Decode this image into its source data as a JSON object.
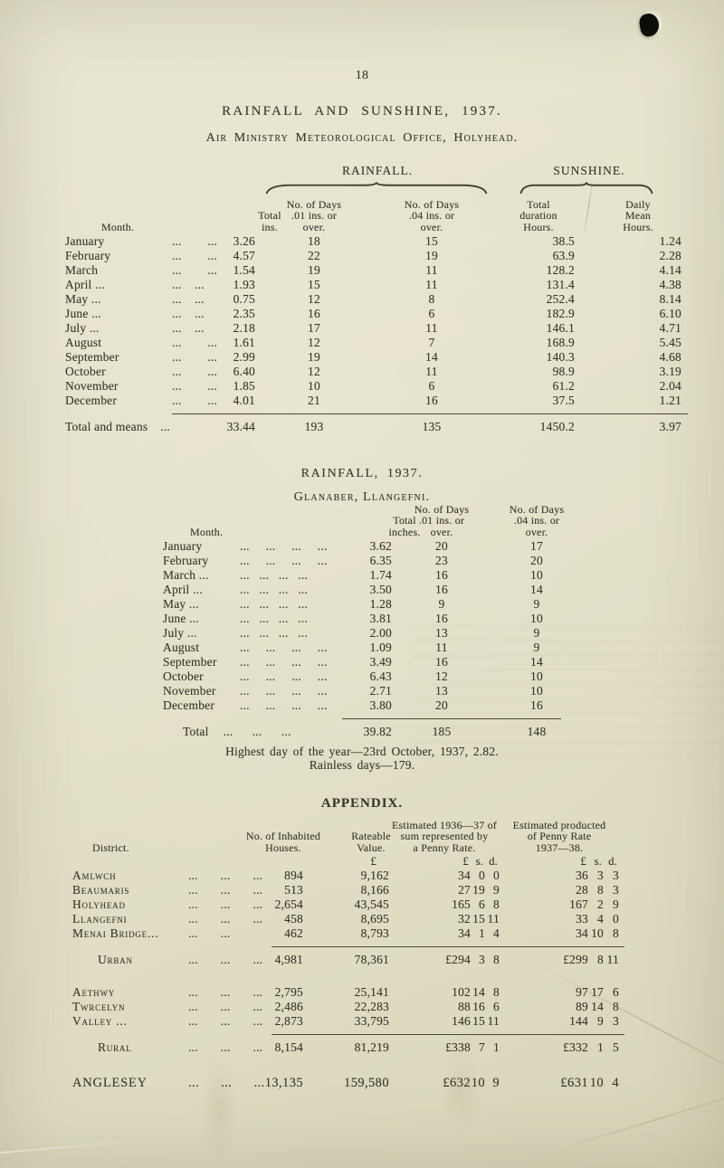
{
  "page": {
    "number": "18",
    "title": "RAINFALL AND SUNSHINE, 1937.",
    "subtitle": "Air Ministry Meteorological Office, Holyhead."
  },
  "colors": {
    "paper": "#e5e2ca",
    "ink": "#3a382d",
    "rule": "#4c4838",
    "hole_punch": "#0d0d0a"
  },
  "table1": {
    "group_rainfall": "RAINFALL.",
    "group_sunshine": "SUNSHINE.",
    "headers": {
      "month": "Month.",
      "total": "Total\nins.",
      "d01": "No. of Days\n.01 ins. or\nover.",
      "d04": "No. of Days\n.04 ins. or\nover.",
      "dur": "Total\nduration\nHours.",
      "mean": "Daily\nMean\nHours."
    },
    "rows": [
      {
        "month": "January",
        "dots": "...        ...",
        "total": "3.26",
        "d01": "18",
        "d04": "15",
        "dur": "38.5",
        "mean": "1.24"
      },
      {
        "month": "February",
        "dots": "...        ...",
        "total": "4.57",
        "d01": "22",
        "d04": "19",
        "dur": "63.9",
        "mean": "2.28"
      },
      {
        "month": "March",
        "dots": "...        ...",
        "total": "1.54",
        "d01": "19",
        "d04": "11",
        "dur": "128.2",
        "mean": "4.14"
      },
      {
        "month": "April ...",
        "dots": "...    ...",
        "total": "1.93",
        "d01": "15",
        "d04": "11",
        "dur": "131.4",
        "mean": "4.38"
      },
      {
        "month": "May ...",
        "dots": "...    ...",
        "total": "0.75",
        "d01": "12",
        "d04": "8",
        "dur": "252.4",
        "mean": "8.14"
      },
      {
        "month": "June ...",
        "dots": "...    ...",
        "total": "2.35",
        "d01": "16",
        "d04": "6",
        "dur": "182.9",
        "mean": "6.10"
      },
      {
        "month": "July ...",
        "dots": "...    ...",
        "total": "2.18",
        "d01": "17",
        "d04": "11",
        "dur": "146.1",
        "mean": "4.71"
      },
      {
        "month": "August",
        "dots": "...        ...",
        "total": "1.61",
        "d01": "12",
        "d04": "7",
        "dur": "168.9",
        "mean": "5.45"
      },
      {
        "month": "September",
        "dots": "...        ...",
        "total": "2.99",
        "d01": "19",
        "d04": "14",
        "dur": "140.3",
        "mean": "4.68"
      },
      {
        "month": "October",
        "dots": "...        ...",
        "total": "6.40",
        "d01": "12",
        "d04": "11",
        "dur": "98.9",
        "mean": "3.19"
      },
      {
        "month": "November",
        "dots": "...        ...",
        "total": "1.85",
        "d01": "10",
        "d04": "6",
        "dur": "61.2",
        "mean": "2.04"
      },
      {
        "month": "December",
        "dots": "...        ...",
        "total": "4.01",
        "d01": "21",
        "d04": "16",
        "dur": "37.5",
        "mean": "1.21"
      }
    ],
    "total_label": "Total and means",
    "total_dots": "...",
    "totals": {
      "total": "33.44",
      "d01": "193",
      "d04": "135",
      "dur": "1450.2",
      "mean": "3.97"
    }
  },
  "table2": {
    "title": "RAINFALL, 1937.",
    "subtitle": "Glanaber, Llangefni.",
    "headers": {
      "month": "Month.",
      "total": "Total\ninches.",
      "d01": "No. of Days\n.01 ins. or\nover.",
      "d04": "No. of Days\n.04 ins. or\nover."
    },
    "rows": [
      {
        "month": "January",
        "dots": "...     ...     ...     ...",
        "total": "3.62",
        "d01": "20",
        "d04": "17"
      },
      {
        "month": "February",
        "dots": "...     ...     ...     ...",
        "total": "6.35",
        "d01": "23",
        "d04": "20"
      },
      {
        "month": "March ...",
        "dots": "...   ...   ...   ...",
        "total": "1.74",
        "d01": "16",
        "d04": "10"
      },
      {
        "month": "April ...",
        "dots": "...   ...   ...   ...",
        "total": "3.50",
        "d01": "16",
        "d04": "14"
      },
      {
        "month": "May ...",
        "dots": "...   ...   ...   ...",
        "total": "1.28",
        "d01": "9",
        "d04": "9"
      },
      {
        "month": "June ...",
        "dots": "...   ...   ...   ...",
        "total": "3.81",
        "d01": "16",
        "d04": "10"
      },
      {
        "month": "July ...",
        "dots": "...   ...   ...   ...",
        "total": "2.00",
        "d01": "13",
        "d04": "9"
      },
      {
        "month": "August",
        "dots": "...     ...     ...     ...",
        "total": "1.09",
        "d01": "11",
        "d04": "9"
      },
      {
        "month": "September",
        "dots": "...     ...     ...     ...",
        "total": "3.49",
        "d01": "16",
        "d04": "14"
      },
      {
        "month": "October",
        "dots": "...     ...     ...     ...",
        "total": "6.43",
        "d01": "12",
        "d04": "10"
      },
      {
        "month": "November",
        "dots": "...     ...     ...     ...",
        "total": "2.71",
        "d01": "13",
        "d04": "10"
      },
      {
        "month": "December",
        "dots": "...     ...     ...     ...",
        "total": "3.80",
        "d01": "20",
        "d04": "16"
      }
    ],
    "total_label": "Total",
    "total_dots": "...      ...      ...",
    "totals": {
      "total": "39.82",
      "d01": "185",
      "d04": "148"
    },
    "highest_day": "Highest day of the year—23rd October, 1937, 2.82.",
    "rainless_days": "Rainless days—179."
  },
  "appendix": {
    "title": "APPENDIX.",
    "headers": {
      "district": "District.",
      "houses": "No. of Inhabited\nHouses.",
      "rateable": "Rateable\nValue.",
      "rateable_unit": "£",
      "est1": "Estimated 1936—37 of\nsum represented by\na Penny Rate.",
      "est2": "Estimated producted\nof Penny Rate\n1937—38.",
      "pound": "£",
      "shillings": "s.",
      "pence": "d."
    },
    "districts": [
      {
        "name": "Amlwch",
        "dots": "...       ...       ...",
        "houses": "894",
        "rateable": "9,162",
        "p1": "34",
        "s1": "0",
        "d1": "0",
        "p2": "36",
        "s2": "3",
        "d2": "3"
      },
      {
        "name": "Beaumaris",
        "dots": "...       ...       ...",
        "houses": "513",
        "rateable": "8,166",
        "p1": "27",
        "s1": "19",
        "d1": "9",
        "p2": "28",
        "s2": "8",
        "d2": "3"
      },
      {
        "name": "Holyhead",
        "dots": "...       ...       ...",
        "houses": "2,654",
        "rateable": "43,545",
        "p1": "165",
        "s1": "6",
        "d1": "8",
        "p2": "167",
        "s2": "2",
        "d2": "9"
      },
      {
        "name": "Llangefni",
        "dots": "...       ...       ...",
        "houses": "458",
        "rateable": "8,695",
        "p1": "32",
        "s1": "15",
        "d1": "11",
        "p2": "33",
        "s2": "4",
        "d2": "0"
      },
      {
        "name": "Menai Bridge...",
        "dots": "...       ...",
        "houses": "462",
        "rateable": "8,793",
        "p1": "34",
        "s1": "1",
        "d1": "4",
        "p2": "34",
        "s2": "10",
        "d2": "8"
      }
    ],
    "urban_rows": [
      {
        "name": "Urban",
        "dots": "...       ...       ...",
        "houses": "4,981",
        "rateable": "78,361",
        "p1": "£294",
        "s1": "3",
        "d1": "8",
        "p2": "£299",
        "s2": "8",
        "d2": "11"
      }
    ],
    "rural_districts": [
      {
        "name": "Aethwy",
        "dots": "...       ...       ...",
        "houses": "2,795",
        "rateable": "25,141",
        "p1": "102",
        "s1": "14",
        "d1": "8",
        "p2": "97",
        "s2": "17",
        "d2": "6"
      },
      {
        "name": "Twrcelyn",
        "dots": "...       ...       ...",
        "houses": "2,486",
        "rateable": "22,283",
        "p1": "88",
        "s1": "16",
        "d1": "6",
        "p2": "89",
        "s2": "14",
        "d2": "8"
      },
      {
        "name": "Valley ...",
        "dots": "...       ...       ...",
        "houses": "2,873",
        "rateable": "33,795",
        "p1": "146",
        "s1": "15",
        "d1": "11",
        "p2": "144",
        "s2": "9",
        "d2": "3"
      }
    ],
    "rural_rows": [
      {
        "name": "Rural",
        "dots": "...       ...       ...",
        "houses": "8,154",
        "rateable": "81,219",
        "p1": "£338",
        "s1": "7",
        "d1": "1",
        "p2": "£332",
        "s2": "1",
        "d2": "5"
      }
    ],
    "county_rows": [
      {
        "name": "ANGLESEY",
        "dots": "...      ...      ...",
        "houses": "13,135",
        "rateable": "159,580",
        "p1": "£632",
        "s1": "10",
        "d1": "9",
        "p2": "£631",
        "s2": "10",
        "d2": "4"
      }
    ]
  }
}
